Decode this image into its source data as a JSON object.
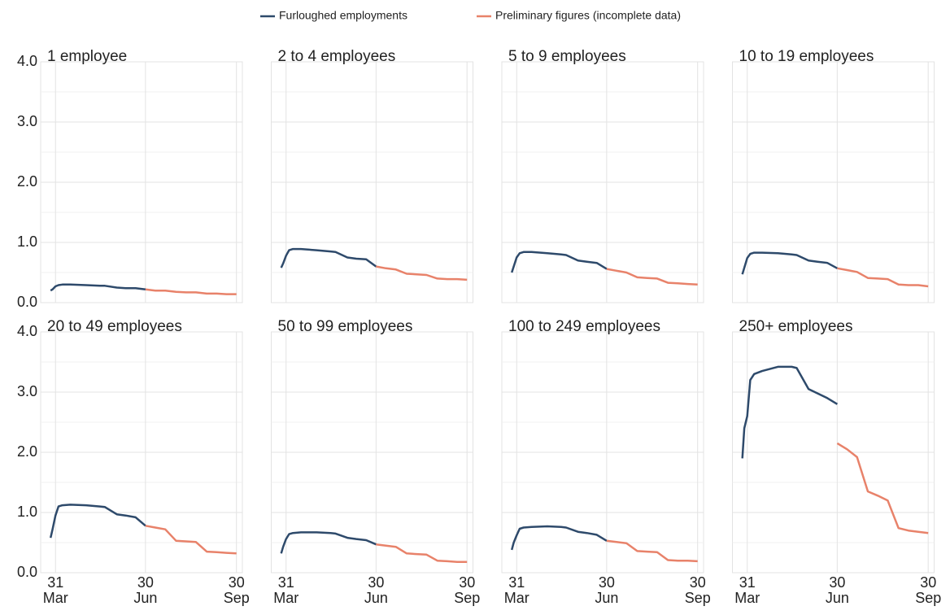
{
  "chart_data": [
    {
      "type": "line",
      "title": "1 employee",
      "x": [
        "26 Mar",
        "28 Mar",
        "31 Mar",
        "3 Apr",
        "7 Apr",
        "15 Apr",
        "1 May",
        "15 May",
        "20 May",
        "1 Jun",
        "10 Jun",
        "20 Jun",
        "30 Jun",
        "10 Jul",
        "20 Jul",
        "31 Jul",
        "10 Aug",
        "20 Aug",
        "31 Aug",
        "10 Sep",
        "20 Sep",
        "30 Sep"
      ],
      "series": [
        {
          "name": "Furloughed employments",
          "color": "#2e4a6b",
          "values": [
            0.2,
            0.22,
            0.27,
            0.29,
            0.3,
            0.3,
            0.29,
            0.28,
            0.28,
            0.25,
            0.24,
            0.24,
            0.22,
            null,
            null,
            null,
            null,
            null,
            null,
            null,
            null,
            null
          ]
        },
        {
          "name": "Preliminary figures (incomplete data)",
          "color": "#e8826a",
          "values": [
            null,
            null,
            null,
            null,
            null,
            null,
            null,
            null,
            null,
            null,
            null,
            null,
            0.22,
            0.2,
            0.2,
            0.18,
            0.17,
            0.17,
            0.15,
            0.15,
            0.14,
            0.14
          ]
        }
      ],
      "xlim": [
        "16 Mar",
        "6 Oct"
      ],
      "xticks": [
        "31 Mar",
        "30 Jun",
        "30 Sep"
      ],
      "ylim": [
        0,
        4
      ],
      "yticks": [
        {
          "value": 0,
          "label": "0.0"
        },
        {
          "value": 1,
          "label": "1.0"
        },
        {
          "value": 2,
          "label": "2.0"
        },
        {
          "value": 3,
          "label": "3.0"
        },
        {
          "value": 4,
          "label": "4.0"
        }
      ],
      "grid": true
    },
    {
      "type": "line",
      "title": "2 to 4 employees",
      "x": [
        "26 Mar",
        "28 Mar",
        "31 Mar",
        "3 Apr",
        "7 Apr",
        "15 Apr",
        "1 May",
        "15 May",
        "20 May",
        "1 Jun",
        "10 Jun",
        "20 Jun",
        "30 Jun",
        "10 Jul",
        "20 Jul",
        "31 Jul",
        "10 Aug",
        "20 Aug",
        "31 Aug",
        "10 Sep",
        "20 Sep",
        "30 Sep"
      ],
      "series": [
        {
          "name": "Furloughed employments",
          "color": "#2e4a6b",
          "values": [
            0.58,
            0.65,
            0.78,
            0.87,
            0.89,
            0.89,
            0.87,
            0.85,
            0.84,
            0.75,
            0.73,
            0.72,
            0.6,
            null,
            null,
            null,
            null,
            null,
            null,
            null,
            null,
            null
          ]
        },
        {
          "name": "Preliminary figures (incomplete data)",
          "color": "#e8826a",
          "values": [
            null,
            null,
            null,
            null,
            null,
            null,
            null,
            null,
            null,
            null,
            null,
            null,
            0.6,
            0.57,
            0.55,
            0.48,
            0.47,
            0.46,
            0.4,
            0.39,
            0.39,
            0.38
          ]
        }
      ],
      "xlim": [
        "16 Mar",
        "6 Oct"
      ],
      "xticks": [
        "31 Mar",
        "30 Jun",
        "30 Sep"
      ],
      "ylim": [
        0,
        4
      ],
      "yticks": [
        {
          "value": 0,
          "label": "0.0"
        },
        {
          "value": 1,
          "label": "1.0"
        },
        {
          "value": 2,
          "label": "2.0"
        },
        {
          "value": 3,
          "label": "3.0"
        },
        {
          "value": 4,
          "label": "4.0"
        }
      ],
      "grid": true
    },
    {
      "type": "line",
      "title": "5 to 9 employees",
      "x": [
        "26 Mar",
        "28 Mar",
        "31 Mar",
        "3 Apr",
        "7 Apr",
        "15 Apr",
        "1 May",
        "15 May",
        "20 May",
        "1 Jun",
        "10 Jun",
        "20 Jun",
        "30 Jun",
        "10 Jul",
        "20 Jul",
        "31 Jul",
        "10 Aug",
        "20 Aug",
        "31 Aug",
        "10 Sep",
        "20 Sep",
        "30 Sep"
      ],
      "series": [
        {
          "name": "Furloughed employments",
          "color": "#2e4a6b",
          "values": [
            0.5,
            0.6,
            0.75,
            0.82,
            0.84,
            0.84,
            0.82,
            0.8,
            0.79,
            0.7,
            0.68,
            0.66,
            0.56,
            null,
            null,
            null,
            null,
            null,
            null,
            null,
            null,
            null
          ]
        },
        {
          "name": "Preliminary figures (incomplete data)",
          "color": "#e8826a",
          "values": [
            null,
            null,
            null,
            null,
            null,
            null,
            null,
            null,
            null,
            null,
            null,
            null,
            0.56,
            0.53,
            0.5,
            0.42,
            0.41,
            0.4,
            0.33,
            0.32,
            0.31,
            0.3
          ]
        }
      ],
      "xlim": [
        "16 Mar",
        "6 Oct"
      ],
      "xticks": [
        "31 Mar",
        "30 Jun",
        "30 Sep"
      ],
      "ylim": [
        0,
        4
      ],
      "yticks": [
        {
          "value": 0,
          "label": "0.0"
        },
        {
          "value": 1,
          "label": "1.0"
        },
        {
          "value": 2,
          "label": "2.0"
        },
        {
          "value": 3,
          "label": "3.0"
        },
        {
          "value": 4,
          "label": "4.0"
        }
      ],
      "grid": true
    },
    {
      "type": "line",
      "title": "10 to 19 employees",
      "x": [
        "26 Mar",
        "28 Mar",
        "31 Mar",
        "3 Apr",
        "7 Apr",
        "15 Apr",
        "1 May",
        "15 May",
        "20 May",
        "1 Jun",
        "10 Jun",
        "20 Jun",
        "30 Jun",
        "10 Jul",
        "20 Jul",
        "31 Jul",
        "10 Aug",
        "20 Aug",
        "31 Aug",
        "10 Sep",
        "20 Sep",
        "30 Sep"
      ],
      "series": [
        {
          "name": "Furloughed employments",
          "color": "#2e4a6b",
          "values": [
            0.47,
            0.58,
            0.74,
            0.81,
            0.83,
            0.83,
            0.82,
            0.8,
            0.79,
            0.7,
            0.68,
            0.66,
            0.57,
            null,
            null,
            null,
            null,
            null,
            null,
            null,
            null,
            null
          ]
        },
        {
          "name": "Preliminary figures (incomplete data)",
          "color": "#e8826a",
          "values": [
            null,
            null,
            null,
            null,
            null,
            null,
            null,
            null,
            null,
            null,
            null,
            null,
            0.57,
            0.54,
            0.51,
            0.41,
            0.4,
            0.39,
            0.3,
            0.29,
            0.29,
            0.27
          ]
        }
      ],
      "xlim": [
        "16 Mar",
        "6 Oct"
      ],
      "xticks": [
        "31 Mar",
        "30 Jun",
        "30 Sep"
      ],
      "ylim": [
        0,
        4
      ],
      "yticks": [
        {
          "value": 0,
          "label": "0.0"
        },
        {
          "value": 1,
          "label": "1.0"
        },
        {
          "value": 2,
          "label": "2.0"
        },
        {
          "value": 3,
          "label": "3.0"
        },
        {
          "value": 4,
          "label": "4.0"
        }
      ],
      "grid": true
    },
    {
      "type": "line",
      "title": "20 to 49 employees",
      "x": [
        "26 Mar",
        "28 Mar",
        "31 Mar",
        "3 Apr",
        "7 Apr",
        "15 Apr",
        "1 May",
        "15 May",
        "20 May",
        "1 Jun",
        "10 Jun",
        "20 Jun",
        "30 Jun",
        "10 Jul",
        "20 Jul",
        "31 Jul",
        "10 Aug",
        "20 Aug",
        "31 Aug",
        "10 Sep",
        "20 Sep",
        "30 Sep"
      ],
      "series": [
        {
          "name": "Furloughed employments",
          "color": "#2e4a6b",
          "values": [
            0.58,
            0.72,
            0.95,
            1.1,
            1.12,
            1.13,
            1.12,
            1.1,
            1.09,
            0.97,
            0.95,
            0.92,
            0.78,
            null,
            null,
            null,
            null,
            null,
            null,
            null,
            null,
            null
          ]
        },
        {
          "name": "Preliminary figures (incomplete data)",
          "color": "#e8826a",
          "values": [
            null,
            null,
            null,
            null,
            null,
            null,
            null,
            null,
            null,
            null,
            null,
            null,
            0.78,
            0.75,
            0.72,
            0.53,
            0.52,
            0.51,
            0.35,
            0.34,
            0.33,
            0.32
          ]
        }
      ],
      "xlim": [
        "16 Mar",
        "6 Oct"
      ],
      "xticks": [
        "31 Mar",
        "30 Jun",
        "30 Sep"
      ],
      "ylim": [
        0,
        4
      ],
      "yticks": [
        {
          "value": 0,
          "label": "0.0"
        },
        {
          "value": 1,
          "label": "1.0"
        },
        {
          "value": 2,
          "label": "2.0"
        },
        {
          "value": 3,
          "label": "3.0"
        },
        {
          "value": 4,
          "label": "4.0"
        }
      ],
      "grid": true
    },
    {
      "type": "line",
      "title": "50 to 99 employees",
      "x": [
        "26 Mar",
        "28 Mar",
        "31 Mar",
        "3 Apr",
        "7 Apr",
        "15 Apr",
        "1 May",
        "15 May",
        "20 May",
        "1 Jun",
        "10 Jun",
        "20 Jun",
        "30 Jun",
        "10 Jul",
        "20 Jul",
        "31 Jul",
        "10 Aug",
        "20 Aug",
        "31 Aug",
        "10 Sep",
        "20 Sep",
        "30 Sep"
      ],
      "series": [
        {
          "name": "Furloughed employments",
          "color": "#2e4a6b",
          "values": [
            0.32,
            0.43,
            0.56,
            0.64,
            0.66,
            0.67,
            0.67,
            0.66,
            0.65,
            0.58,
            0.56,
            0.54,
            0.47,
            null,
            null,
            null,
            null,
            null,
            null,
            null,
            null,
            null
          ]
        },
        {
          "name": "Preliminary figures (incomplete data)",
          "color": "#e8826a",
          "values": [
            null,
            null,
            null,
            null,
            null,
            null,
            null,
            null,
            null,
            null,
            null,
            null,
            0.47,
            0.45,
            0.43,
            0.32,
            0.31,
            0.3,
            0.2,
            0.19,
            0.18,
            0.18
          ]
        }
      ],
      "xlim": [
        "16 Mar",
        "6 Oct"
      ],
      "xticks": [
        "31 Mar",
        "30 Jun",
        "30 Sep"
      ],
      "ylim": [
        0,
        4
      ],
      "yticks": [
        {
          "value": 0,
          "label": "0.0"
        },
        {
          "value": 1,
          "label": "1.0"
        },
        {
          "value": 2,
          "label": "2.0"
        },
        {
          "value": 3,
          "label": "3.0"
        },
        {
          "value": 4,
          "label": "4.0"
        }
      ],
      "grid": true
    },
    {
      "type": "line",
      "title": "100 to 249 employees",
      "x": [
        "26 Mar",
        "28 Mar",
        "31 Mar",
        "3 Apr",
        "7 Apr",
        "15 Apr",
        "1 May",
        "15 May",
        "20 May",
        "1 Jun",
        "10 Jun",
        "20 Jun",
        "30 Jun",
        "10 Jul",
        "20 Jul",
        "31 Jul",
        "10 Aug",
        "20 Aug",
        "31 Aug",
        "10 Sep",
        "20 Sep",
        "30 Sep"
      ],
      "series": [
        {
          "name": "Furloughed employments",
          "color": "#2e4a6b",
          "values": [
            0.38,
            0.5,
            0.62,
            0.73,
            0.75,
            0.76,
            0.77,
            0.76,
            0.75,
            0.68,
            0.66,
            0.63,
            0.53,
            null,
            null,
            null,
            null,
            null,
            null,
            null,
            null,
            null
          ]
        },
        {
          "name": "Preliminary figures (incomplete data)",
          "color": "#e8826a",
          "values": [
            null,
            null,
            null,
            null,
            null,
            null,
            null,
            null,
            null,
            null,
            null,
            null,
            0.53,
            0.51,
            0.49,
            0.36,
            0.35,
            0.34,
            0.21,
            0.2,
            0.2,
            0.19
          ]
        }
      ],
      "xlim": [
        "16 Mar",
        "6 Oct"
      ],
      "xticks": [
        "31 Mar",
        "30 Jun",
        "30 Sep"
      ],
      "ylim": [
        0,
        4
      ],
      "yticks": [
        {
          "value": 0,
          "label": "0.0"
        },
        {
          "value": 1,
          "label": "1.0"
        },
        {
          "value": 2,
          "label": "2.0"
        },
        {
          "value": 3,
          "label": "3.0"
        },
        {
          "value": 4,
          "label": "4.0"
        }
      ],
      "grid": true
    },
    {
      "type": "line",
      "title": "250+ employees",
      "x": [
        "26 Mar",
        "28 Mar",
        "31 Mar",
        "3 Apr",
        "7 Apr",
        "15 Apr",
        "1 May",
        "15 May",
        "20 May",
        "1 Jun",
        "10 Jun",
        "20 Jun",
        "30 Jun",
        "10 Jul",
        "20 Jul",
        "31 Jul",
        "10 Aug",
        "20 Aug",
        "31 Aug",
        "10 Sep",
        "20 Sep",
        "30 Sep"
      ],
      "series": [
        {
          "name": "Furloughed employments",
          "color": "#2e4a6b",
          "values": [
            1.9,
            2.4,
            2.6,
            3.2,
            3.3,
            3.35,
            3.42,
            3.42,
            3.4,
            3.05,
            2.98,
            2.9,
            2.8,
            null,
            null,
            null,
            null,
            null,
            null,
            null,
            null,
            null
          ]
        },
        {
          "name": "Preliminary figures (incomplete data)",
          "color": "#e8826a",
          "values": [
            null,
            null,
            null,
            null,
            null,
            null,
            null,
            null,
            null,
            null,
            null,
            null,
            2.15,
            2.05,
            1.92,
            1.35,
            1.28,
            1.2,
            0.74,
            0.7,
            0.68,
            0.66
          ]
        }
      ],
      "xlim": [
        "16 Mar",
        "6 Oct"
      ],
      "xticks": [
        "31 Mar",
        "30 Jun",
        "30 Sep"
      ],
      "ylim": [
        0,
        4
      ],
      "yticks": [
        {
          "value": 0,
          "label": "0.0"
        },
        {
          "value": 1,
          "label": "1.0"
        },
        {
          "value": 2,
          "label": "2.0"
        },
        {
          "value": 3,
          "label": "3.0"
        },
        {
          "value": 4,
          "label": "4.0"
        }
      ],
      "grid": true
    }
  ]
}
